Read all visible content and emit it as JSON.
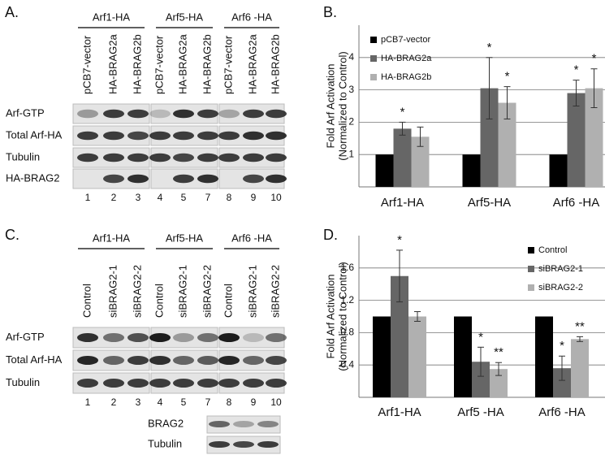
{
  "blot_a": {
    "label": "A.",
    "groups": [
      "Arf1-HA",
      "Arf5-HA",
      "Arf6 -HA"
    ],
    "lanes": [
      "pCB7-vector",
      "HA-BRAG2a",
      "HA-BRAG2b",
      "pCB7-vector",
      "HA-BRAG2a",
      "HA-BRAG2b",
      "pCB7-vector",
      "HA-BRAG2a",
      "HA-BRAG2b"
    ],
    "rows": [
      "Arf-GTP",
      "Total Arf-HA",
      "Tubulin",
      "HA-BRAG2"
    ],
    "lane_numbers": [
      "1",
      "2",
      "3",
      "4",
      "5",
      "7",
      "8",
      "9",
      "10"
    ]
  },
  "blot_c": {
    "label": "C.",
    "groups": [
      "Arf1-HA",
      "Arf5-HA",
      "Arf6 -HA"
    ],
    "lanes": [
      "Control",
      "siBRAG2-1",
      "siBRAG2-2",
      "Control",
      "siBRAG2-1",
      "siBRAG2-2",
      "Control",
      "siBRAG2-1",
      "siBRAG2-2"
    ],
    "rows": [
      "Arf-GTP",
      "Total Arf-HA",
      "Tubulin"
    ],
    "lane_numbers": [
      "1",
      "2",
      "3",
      "4",
      "5",
      "7",
      "8",
      "9",
      "10"
    ],
    "lower_rows": [
      "BRAG2",
      "Tubulin"
    ]
  },
  "chart_data": [
    {
      "type": "bar",
      "label": "B.",
      "ylabel": [
        "Fold Arf Activation",
        "(Normalized to Control)"
      ],
      "categories": [
        "Arf1-HA",
        "Arf5-HA",
        "Arf6 -HA"
      ],
      "series": [
        {
          "name": "pCB7-vector",
          "color": "#000000",
          "values": [
            1,
            1,
            1
          ],
          "errors": [
            null,
            null,
            null
          ],
          "annotations": [
            null,
            null,
            null
          ]
        },
        {
          "name": "HA-BRAG2a",
          "color": "#666666",
          "values": [
            1.8,
            3.05,
            2.9
          ],
          "errors": [
            0.2,
            0.95,
            0.4
          ],
          "annotations": [
            "*",
            "*",
            "*"
          ]
        },
        {
          "name": "HA-BRAG2b",
          "color": "#b0b0b0",
          "values": [
            1.55,
            2.6,
            3.05
          ],
          "errors": [
            0.3,
            0.5,
            0.6
          ],
          "annotations": [
            null,
            "*",
            "*"
          ]
        }
      ],
      "ylim": [
        0,
        5
      ],
      "yticks": [
        1,
        2,
        3,
        4
      ],
      "grid": true,
      "legend": "upper left"
    },
    {
      "type": "bar",
      "label": "D.",
      "ylabel": [
        "Fold Arf Activation",
        "(Normalized to Control)"
      ],
      "categories": [
        "Arf1-HA",
        "Arf5 -HA",
        "Arf6 -HA"
      ],
      "series": [
        {
          "name": "Control",
          "color": "#000000",
          "values": [
            1,
            1,
            1
          ],
          "errors": [
            null,
            null,
            null
          ],
          "annotations": [
            null,
            null,
            null
          ]
        },
        {
          "name": "siBRAG2-1",
          "color": "#666666",
          "values": [
            1.5,
            0.44,
            0.36
          ],
          "errors": [
            0.32,
            0.18,
            0.15
          ],
          "annotations": [
            "*",
            "*",
            "*"
          ]
        },
        {
          "name": "siBRAG2-2",
          "color": "#b0b0b0",
          "values": [
            1.0,
            0.35,
            0.72
          ],
          "errors": [
            0.06,
            0.08,
            0.03
          ],
          "annotations": [
            null,
            "**",
            "**"
          ]
        }
      ],
      "ylim": [
        0,
        2
      ],
      "yticks": [
        0.4,
        0.8,
        1.2,
        1.6
      ],
      "grid": true,
      "legend": "upper right"
    }
  ]
}
